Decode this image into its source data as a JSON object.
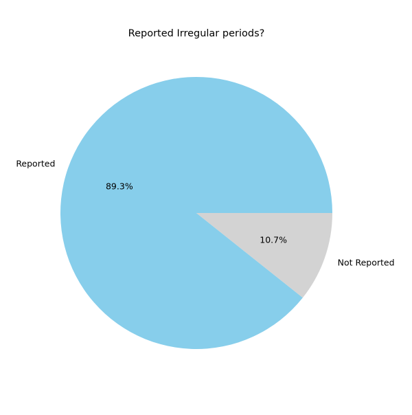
{
  "chart_data": {
    "type": "pie",
    "title": "Reported Irregular periods?",
    "start_angle_deg": 0,
    "direction": "counterclockwise",
    "slices": [
      {
        "label": "Reported",
        "value": 89.3,
        "pct_label": "89.3%",
        "color": "#87ceeb"
      },
      {
        "label": "Not Reported",
        "value": 10.7,
        "pct_label": "10.7%",
        "color": "#d3d3d3"
      }
    ]
  }
}
